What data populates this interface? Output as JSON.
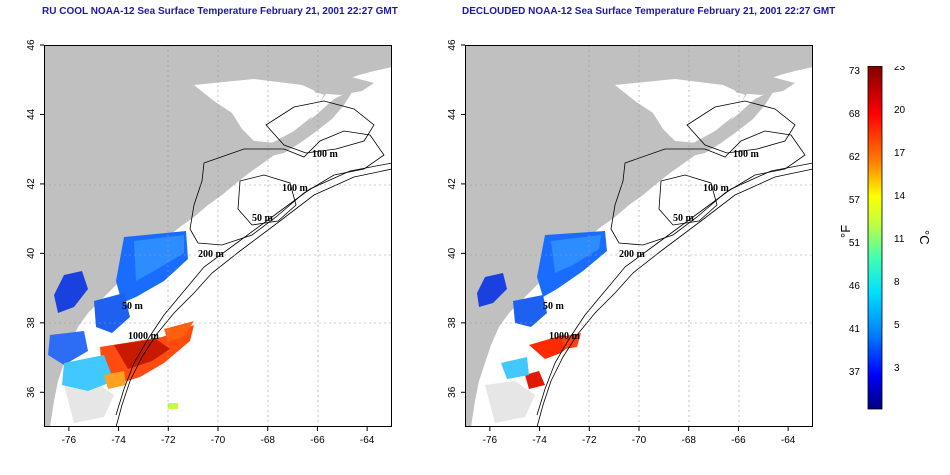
{
  "titles": {
    "left": "RU COOL NOAA-12 Sea Surface Temperature February 21, 2001 22:27 GMT",
    "right": "DECLOUDED NOAA-12 Sea Surface Temperature February 21, 2001 22:27 GMT"
  },
  "map": {
    "lon_range": [
      -77,
      -63
    ],
    "lat_range": [
      35,
      46
    ],
    "x_ticks": [
      -76,
      -74,
      -72,
      -70,
      -68,
      -66,
      -64
    ],
    "y_ticks": [
      36,
      38,
      40,
      42,
      44,
      46
    ],
    "contour_labels": [
      "100 m",
      "100 m",
      "50 m",
      "200 m",
      "50 m",
      "1000 m"
    ],
    "land_color": "#c0c0c0",
    "grid_color": "#888888"
  },
  "colorbar": {
    "fahrenheit_ticks": [
      "73",
      "68",
      "62",
      "57",
      "51",
      "46",
      "41",
      "37"
    ],
    "celsius_ticks": [
      "23",
      "20",
      "17",
      "14",
      "11",
      "8",
      "5",
      "3"
    ],
    "fahrenheit_unit": "°F",
    "celsius_unit": "°C",
    "range_c": [
      0,
      23.5
    ],
    "colors": [
      "#000080",
      "#0000ff",
      "#0080ff",
      "#00e0ff",
      "#40ffb0",
      "#c0ff40",
      "#ffff00",
      "#ff8000",
      "#ff0000",
      "#800000"
    ]
  }
}
